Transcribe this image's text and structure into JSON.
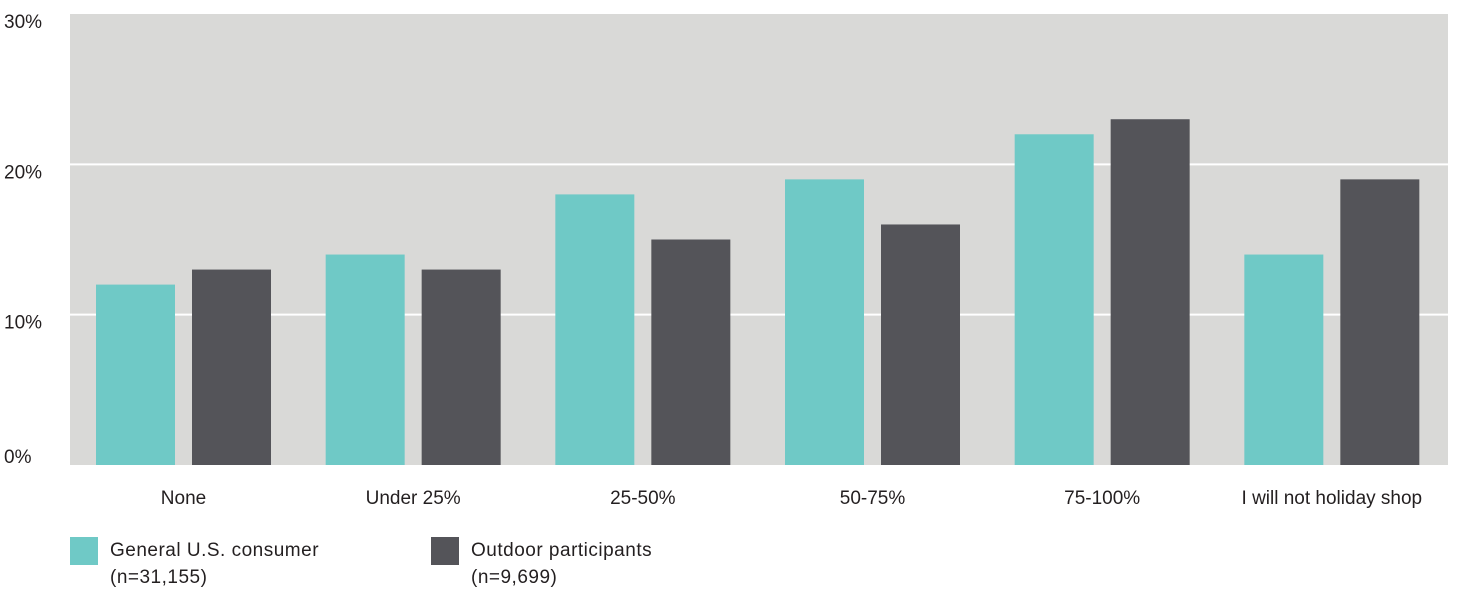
{
  "chart_data": {
    "type": "bar",
    "categories": [
      "None",
      "Under 25%",
      "25-50%",
      "50-75%",
      "75-100%",
      "I will not holiday shop"
    ],
    "series": [
      {
        "name": "General U.S. consumer (n=31,155)",
        "color": "#6fc9c6",
        "values": [
          12,
          14,
          18,
          19,
          22,
          14
        ]
      },
      {
        "name": "Outdoor participants (n=9,699)",
        "color": "#545459",
        "values": [
          13,
          13,
          15,
          16,
          23,
          19
        ]
      }
    ],
    "ylim": [
      0,
      30
    ],
    "yticks": [
      "0%",
      "10%",
      "20%",
      "30%"
    ],
    "ytick_values": [
      0,
      10,
      20,
      30
    ],
    "plot_background": "#d9d9d7",
    "gridline_color": "#ffffff",
    "grid": true,
    "legend_position": "bottom-left"
  },
  "legend": {
    "items": [
      {
        "line1": "General U.S. consumer",
        "line2": "(n=31,155)"
      },
      {
        "line1": "Outdoor participants",
        "line2": "(n=9,699)"
      }
    ]
  }
}
